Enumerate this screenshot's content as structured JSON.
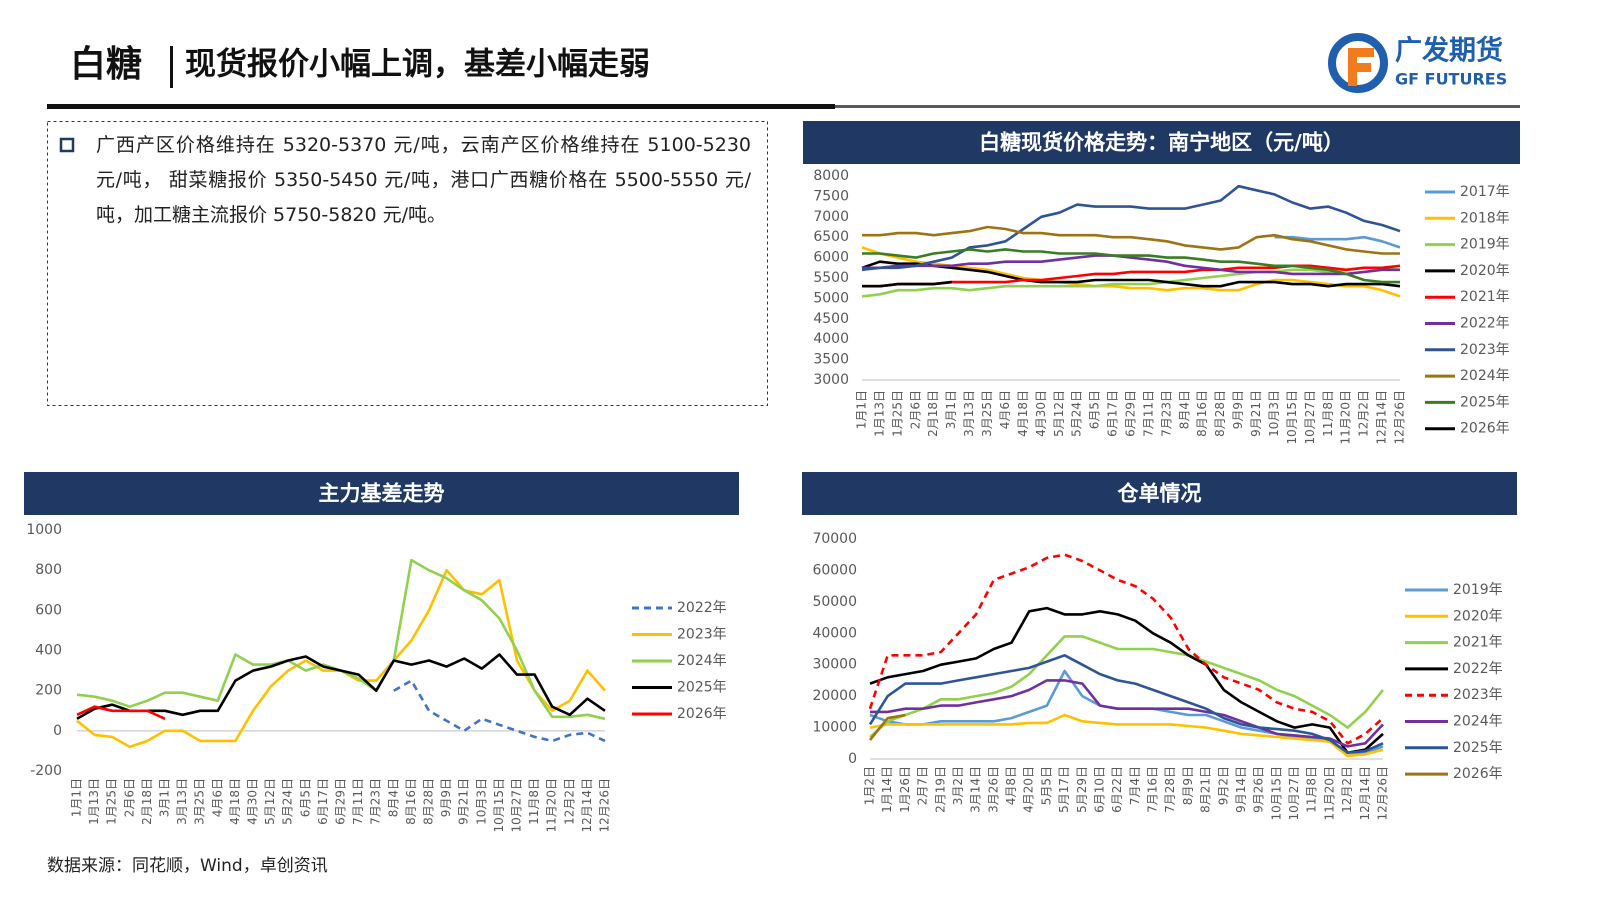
{
  "header": {
    "title": "白糖",
    "subtitle": "现货报价小幅上调，基差小幅走弱"
  },
  "logo": {
    "name": "广发期货",
    "name_en": "GF FUTURES"
  },
  "summary": "广西产区价格维持在 5320-5370 元/吨，云南产区价格维持在 5100-5230 元/吨， 甜菜糖报价 5350-5450 元/吨，港口广西糖价格在 5500-5550 元/吨，加工糖主流报价 5750-5820 元/吨。",
  "source": "数据来源：同花顺，Wind，卓创资讯",
  "chart_data": [
    {
      "type": "line",
      "title": "白糖现货价格走势：南宁地区（元/吨）",
      "grid": false,
      "legend": "right",
      "categories": [
        "1月1日",
        "1月13日",
        "1月25日",
        "2月6日",
        "2月18日",
        "3月1日",
        "3月13日",
        "3月25日",
        "4月6日",
        "4月18日",
        "4月30日",
        "5月12日",
        "5月24日",
        "6月5日",
        "6月17日",
        "6月29日",
        "7月11日",
        "7月23日",
        "8月4日",
        "8月16日",
        "8月28日",
        "9月9日",
        "9月21日",
        "10月3日",
        "10月15日",
        "10月27日",
        "11月8日",
        "11月20日",
        "12月2日",
        "12月14日",
        "12月26日"
      ],
      "ylim": [
        3000,
        8000
      ],
      "yticks": [
        3000,
        3500,
        4000,
        4500,
        5000,
        5500,
        6000,
        6500,
        7000,
        7500,
        8000
      ],
      "series": [
        {
          "name": "2017年",
          "color": "#5b9bd5",
          "values": [
            null,
            null,
            null,
            null,
            null,
            null,
            null,
            null,
            null,
            null,
            null,
            null,
            null,
            null,
            null,
            null,
            null,
            null,
            null,
            null,
            null,
            null,
            null,
            6500,
            6500,
            6450,
            6450,
            6450,
            6500,
            6400,
            6250
          ]
        },
        {
          "name": "2018年",
          "color": "#ffc000",
          "values": [
            6250,
            6100,
            6000,
            5900,
            5850,
            5800,
            5750,
            5700,
            5600,
            5500,
            5450,
            5400,
            5350,
            5300,
            5300,
            5250,
            5250,
            5200,
            5250,
            5250,
            5200,
            5200,
            5350,
            5450,
            5450,
            5400,
            5350,
            5300,
            5300,
            5200,
            5050
          ]
        },
        {
          "name": "2019年",
          "color": "#92d050",
          "values": [
            5050,
            5100,
            5200,
            5200,
            5250,
            5250,
            5200,
            5250,
            5300,
            5300,
            5300,
            5300,
            5300,
            5300,
            5350,
            5350,
            5350,
            5400,
            5450,
            5500,
            5550,
            5600,
            5650,
            5650,
            5700,
            5700,
            5650,
            5700,
            5750,
            5750,
            5700
          ]
        },
        {
          "name": "2020年",
          "color": "#000000",
          "values": [
            5750,
            5900,
            5850,
            5850,
            5800,
            5750,
            5700,
            5650,
            5550,
            5450,
            5400,
            5400,
            5400,
            5450,
            5450,
            5450,
            5450,
            5400,
            5350,
            5300,
            5300,
            5400,
            5400,
            5400,
            5350,
            5350,
            5300,
            5350,
            5350,
            5350,
            5300
          ]
        },
        {
          "name": "2021年",
          "color": "#ff0000",
          "values": [
            5300,
            5300,
            5350,
            5350,
            5350,
            5400,
            5400,
            5400,
            5400,
            5450,
            5450,
            5500,
            5550,
            5600,
            5600,
            5650,
            5650,
            5650,
            5650,
            5700,
            5700,
            5750,
            5750,
            5750,
            5800,
            5800,
            5750,
            5700,
            5750,
            5750,
            5800
          ]
        },
        {
          "name": "2022年",
          "color": "#7030a0",
          "values": [
            5750,
            5750,
            5800,
            5800,
            5800,
            5800,
            5850,
            5850,
            5900,
            5900,
            5900,
            5950,
            6000,
            6050,
            6050,
            6000,
            5950,
            5900,
            5800,
            5750,
            5700,
            5650,
            5650,
            5650,
            5600,
            5600,
            5600,
            5600,
            5650,
            5700,
            5700
          ]
        },
        {
          "name": "2023年",
          "color": "#2f5597",
          "values": [
            5700,
            5750,
            5750,
            5800,
            5900,
            6000,
            6250,
            6300,
            6400,
            6700,
            7000,
            7100,
            7300,
            7250,
            7250,
            7250,
            7200,
            7200,
            7200,
            7300,
            7400,
            7750,
            7650,
            7550,
            7350,
            7200,
            7250,
            7100,
            6900,
            6800,
            6650
          ]
        },
        {
          "name": "2024年",
          "color": "#9c7414",
          "values": [
            6550,
            6550,
            6600,
            6600,
            6550,
            6600,
            6650,
            6750,
            6700,
            6600,
            6600,
            6550,
            6550,
            6550,
            6500,
            6500,
            6450,
            6400,
            6300,
            6250,
            6200,
            6250,
            6500,
            6550,
            6450,
            6400,
            6300,
            6200,
            6150,
            6100,
            6100
          ]
        },
        {
          "name": "2025年",
          "color": "#3a7d22",
          "values": [
            6100,
            6100,
            6050,
            6000,
            6100,
            6150,
            6200,
            6150,
            6200,
            6150,
            6150,
            6100,
            6100,
            6100,
            6050,
            6050,
            6050,
            6000,
            6000,
            5950,
            5900,
            5900,
            5850,
            5800,
            5800,
            5750,
            5700,
            5600,
            5450,
            5400,
            5400
          ]
        },
        {
          "name": "2026年",
          "color": "#000000",
          "values": [
            5300,
            5300,
            5350,
            5350,
            5350,
            5400,
            null,
            null,
            null,
            null,
            null,
            null,
            null,
            null,
            null,
            null,
            null,
            null,
            null,
            null,
            null,
            null,
            null,
            null,
            null,
            null,
            null,
            null,
            null,
            null,
            null
          ]
        }
      ]
    },
    {
      "type": "line",
      "title": "主力基差走势",
      "grid": false,
      "legend": "right",
      "categories": [
        "1月1日",
        "1月13日",
        "1月25日",
        "2月6日",
        "2月18日",
        "3月1日",
        "3月13日",
        "3月25日",
        "4月6日",
        "4月18日",
        "4月30日",
        "5月12日",
        "5月24日",
        "6月5日",
        "6月17日",
        "6月29日",
        "7月11日",
        "7月23日",
        "8月4日",
        "8月16日",
        "8月28日",
        "9月9日",
        "9月21日",
        "10月3日",
        "10月15日",
        "10月27日",
        "11月8日",
        "11月20日",
        "12月2日",
        "12月14日",
        "12月26日"
      ],
      "ylim": [
        -200,
        1000
      ],
      "yticks": [
        -200,
        0,
        200,
        400,
        600,
        800,
        1000
      ],
      "series": [
        {
          "name": "2022年",
          "color": "#4472c4",
          "dashed": true,
          "values": [
            null,
            null,
            null,
            null,
            null,
            null,
            null,
            null,
            null,
            null,
            null,
            null,
            null,
            null,
            null,
            null,
            null,
            null,
            200,
            250,
            100,
            50,
            0,
            60,
            30,
            0,
            -30,
            -50,
            -20,
            -10,
            -50
          ]
        },
        {
          "name": "2023年",
          "color": "#ffc000",
          "values": [
            50,
            -20,
            -30,
            -80,
            -50,
            0,
            0,
            -50,
            -50,
            -50,
            100,
            220,
            300,
            350,
            300,
            300,
            250,
            250,
            350,
            450,
            600,
            800,
            700,
            680,
            750,
            350,
            200,
            100,
            150,
            300,
            200
          ]
        },
        {
          "name": "2024年",
          "color": "#92d050",
          "values": [
            180,
            170,
            150,
            120,
            150,
            190,
            190,
            170,
            150,
            380,
            330,
            330,
            350,
            300,
            330,
            300,
            260,
            200,
            350,
            850,
            800,
            760,
            700,
            650,
            560,
            400,
            200,
            70,
            70,
            80,
            60
          ]
        },
        {
          "name": "2025年",
          "color": "#000000",
          "values": [
            60,
            110,
            130,
            100,
            100,
            100,
            80,
            100,
            100,
            250,
            300,
            320,
            350,
            370,
            320,
            300,
            280,
            200,
            350,
            330,
            350,
            320,
            360,
            310,
            380,
            280,
            280,
            120,
            80,
            160,
            100
          ]
        },
        {
          "name": "2026年",
          "color": "#ff0000",
          "values": [
            80,
            120,
            100,
            100,
            100,
            60,
            null,
            null,
            null,
            null,
            null,
            null,
            null,
            null,
            null,
            null,
            null,
            null,
            null,
            null,
            null,
            null,
            null,
            null,
            null,
            null,
            null,
            null,
            null,
            null,
            null
          ]
        }
      ]
    },
    {
      "type": "line",
      "title": "仓单情况",
      "grid": false,
      "legend": "right",
      "categories": [
        "1月2日",
        "1月14日",
        "1月26日",
        "2月7日",
        "2月19日",
        "3月2日",
        "3月14日",
        "3月26日",
        "4月8日",
        "4月20日",
        "5月5日",
        "5月17日",
        "5月29日",
        "6月10日",
        "6月22日",
        "7月4日",
        "7月16日",
        "7月28日",
        "8月9日",
        "8月21日",
        "9月2日",
        "9月14日",
        "9月26日",
        "10月15日",
        "10月27日",
        "11月8日",
        "11月20日",
        "12月2日",
        "12月14日",
        "12月26日"
      ],
      "ylim": [
        0,
        70000
      ],
      "yticks": [
        0,
        10000,
        20000,
        30000,
        40000,
        50000,
        60000,
        70000
      ],
      "series": [
        {
          "name": "2019年",
          "color": "#5b9bd5",
          "values": [
            14000,
            12000,
            11000,
            11000,
            12000,
            12000,
            12000,
            12000,
            13000,
            15000,
            17000,
            28000,
            20000,
            17000,
            16000,
            16000,
            16000,
            15000,
            14000,
            14000,
            12000,
            10000,
            9000,
            8000,
            7000,
            6500,
            6000,
            1000,
            2000,
            4000
          ]
        },
        {
          "name": "2020年",
          "color": "#ffc000",
          "values": [
            10000,
            11000,
            11000,
            11000,
            11000,
            11000,
            11000,
            11000,
            11000,
            11500,
            11500,
            14000,
            12000,
            11500,
            11000,
            11000,
            11000,
            11000,
            10500,
            10000,
            9000,
            8000,
            7500,
            7000,
            6500,
            6000,
            5500,
            1000,
            1500,
            3000
          ]
        },
        {
          "name": "2021年",
          "color": "#92d050",
          "values": [
            7000,
            12000,
            14000,
            16000,
            19000,
            19000,
            20000,
            21000,
            23000,
            27000,
            33000,
            39000,
            39000,
            37000,
            35000,
            35000,
            35000,
            34000,
            33000,
            31000,
            29000,
            27000,
            25000,
            22000,
            20000,
            17000,
            14000,
            10000,
            15000,
            22000
          ]
        },
        {
          "name": "2022年",
          "color": "#000000",
          "values": [
            24000,
            26000,
            27000,
            28000,
            30000,
            31000,
            32000,
            35000,
            37000,
            47000,
            48000,
            46000,
            46000,
            47000,
            46000,
            44000,
            40000,
            37000,
            33000,
            30000,
            22000,
            18000,
            15000,
            12000,
            10000,
            11000,
            10000,
            2000,
            3000,
            8000
          ]
        },
        {
          "name": "2023年",
          "color": "#ff0000",
          "dashed": true,
          "values": [
            16000,
            33000,
            33000,
            33000,
            34000,
            40000,
            46000,
            57000,
            59000,
            61000,
            64000,
            65000,
            63000,
            60000,
            57000,
            55000,
            51000,
            45000,
            35000,
            30000,
            26000,
            24000,
            22000,
            18000,
            16000,
            15000,
            12000,
            5000,
            8000,
            13000
          ]
        },
        {
          "name": "2024年",
          "color": "#7030a0",
          "values": [
            15000,
            15000,
            16000,
            16000,
            17000,
            17000,
            18000,
            19000,
            20000,
            22000,
            25000,
            25000,
            24000,
            17000,
            16000,
            16000,
            16000,
            16000,
            16000,
            15000,
            14000,
            12000,
            10000,
            8000,
            7500,
            7000,
            6500,
            4000,
            5000,
            11000
          ]
        },
        {
          "name": "2025年",
          "color": "#2f5597",
          "values": [
            11000,
            20000,
            24000,
            24000,
            24000,
            25000,
            26000,
            27000,
            28000,
            29000,
            31000,
            33000,
            30000,
            27000,
            25000,
            24000,
            22000,
            20000,
            18000,
            16000,
            13000,
            11000,
            10000,
            9500,
            9000,
            8000,
            6000,
            2000,
            2500,
            5000
          ]
        },
        {
          "name": "2026年",
          "color": "#9c7414",
          "values": [
            6000,
            13000,
            14000,
            null,
            null,
            null,
            null,
            null,
            null,
            null,
            null,
            null,
            null,
            null,
            null,
            null,
            null,
            null,
            null,
            null,
            null,
            null,
            null,
            null,
            null,
            null,
            null,
            null,
            null,
            null
          ]
        }
      ]
    }
  ]
}
